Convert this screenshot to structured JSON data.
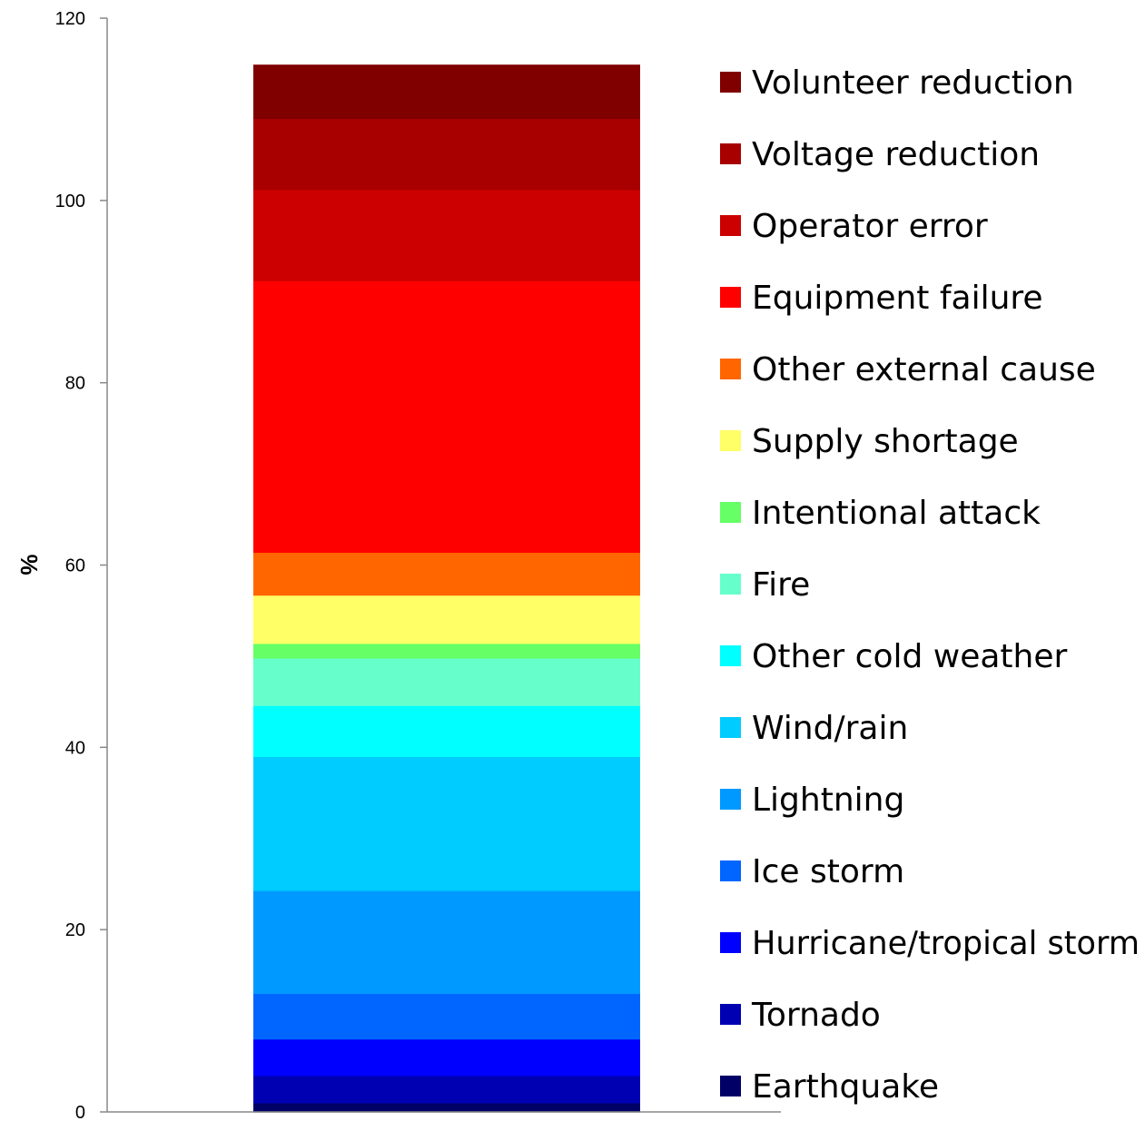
{
  "chart_data": {
    "type": "bar",
    "stacked": true,
    "categories": [
      ""
    ],
    "title": "",
    "xlabel": "",
    "ylabel": "%",
    "ylim": [
      0,
      120
    ],
    "yticks": [
      "0",
      "20",
      "40",
      "60",
      "80",
      "100",
      "120"
    ],
    "grid": false,
    "legend_position": "right",
    "series": [
      {
        "name": "Earthquake",
        "values": [
          1
        ],
        "color": "#000066"
      },
      {
        "name": "Tornado",
        "values": [
          3
        ],
        "color": "#0000b3"
      },
      {
        "name": "Hurricane/tropical storm",
        "values": [
          4
        ],
        "color": "#0000ff"
      },
      {
        "name": "Ice storm",
        "values": [
          5
        ],
        "color": "#0066ff"
      },
      {
        "name": "Lightning",
        "values": [
          11.3
        ],
        "color": "#0099ff"
      },
      {
        "name": "Wind/rain",
        "values": [
          14.7
        ],
        "color": "#00ccff"
      },
      {
        "name": "Other cold weather",
        "values": [
          5.6
        ],
        "color": "#00ffff"
      },
      {
        "name": "Fire",
        "values": [
          5.2
        ],
        "color": "#66ffcc"
      },
      {
        "name": "Intentional attack",
        "values": [
          1.6
        ],
        "color": "#66ff66"
      },
      {
        "name": "Supply shortage",
        "values": [
          5.3
        ],
        "color": "#ffff66"
      },
      {
        "name": "Other external cause",
        "values": [
          4.7
        ],
        "color": "#ff6600"
      },
      {
        "name": "Equipment failure",
        "values": [
          29.8
        ],
        "color": "#ff0000"
      },
      {
        "name": "Operator error",
        "values": [
          10
        ],
        "color": "#cc0000"
      },
      {
        "name": "Voltage reduction",
        "values": [
          7.8
        ],
        "color": "#a80000"
      },
      {
        "name": "Volunteer reduction",
        "values": [
          5.9
        ],
        "color": "#800000"
      }
    ]
  }
}
